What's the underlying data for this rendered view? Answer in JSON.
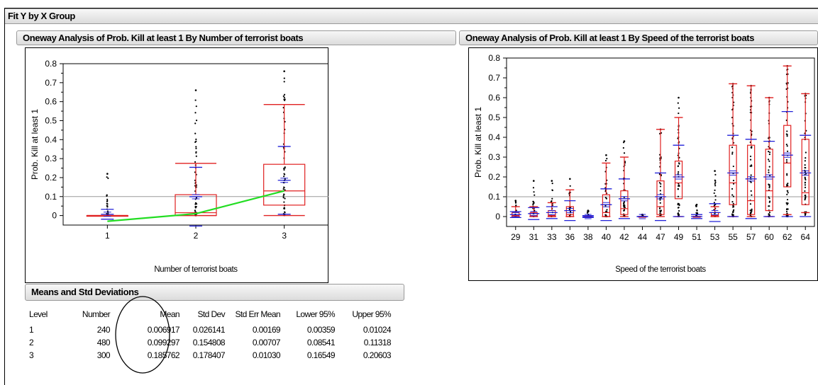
{
  "window_title": "Fit Y by X Group",
  "left_panel": {
    "title": "Oneway Analysis of Prob. Kill at least 1 By Number of terrorist boats",
    "chart_data": {
      "type": "box",
      "xlabel": "Number of terrorist boats",
      "ylabel": "Prob. Kill at least 1",
      "ylim": [
        -0.05,
        0.8
      ],
      "yticks": [
        0,
        0.1,
        0.2,
        0.3,
        0.4,
        0.5,
        0.6,
        0.7,
        0.8
      ],
      "categories": [
        "1",
        "2",
        "3"
      ],
      "reference_line": 0.1,
      "boxes": [
        {
          "group": "1",
          "min": 0,
          "q1": 0,
          "median": 0,
          "q3": 0,
          "whisker_low": 0,
          "whisker_high": 0
        },
        {
          "group": "2",
          "min": 0,
          "q1": 0,
          "median": 0.015,
          "q3": 0.11,
          "whisker_low": 0,
          "whisker_high": 0.275
        },
        {
          "group": "3",
          "min": 0,
          "q1": 0.055,
          "median": 0.13,
          "q3": 0.27,
          "whisker_low": 0,
          "whisker_high": 0.585
        }
      ],
      "means": [
        0.006917,
        0.099297,
        0.185762
      ],
      "std_dev_high": [
        0.033,
        0.254,
        0.364
      ],
      "std_dev_low": [
        -0.019,
        -0.055,
        0.007
      ],
      "points_max": [
        0.22,
        0.66,
        0.76
      ],
      "mean_line_color": "#22dd22",
      "mean_line": [
        -0.03,
        0.01,
        0.13
      ]
    }
  },
  "right_panel": {
    "title": "Oneway Analysis of Prob. Kill at least 1 By Speed of the terrorist boats",
    "chart_data": {
      "type": "box",
      "xlabel": "Speed of the terrorist boats",
      "ylabel": "Prob. Kill at least 1",
      "ylim": [
        -0.05,
        0.8
      ],
      "yticks": [
        0,
        0.1,
        0.2,
        0.3,
        0.4,
        0.5,
        0.6,
        0.7,
        0.8
      ],
      "reference_line": 0.1,
      "categories": [
        "29",
        "31",
        "33",
        "36",
        "38",
        "40",
        "42",
        "44",
        "47",
        "49",
        "51",
        "53",
        "55",
        "57",
        "60",
        "62",
        "64"
      ],
      "boxes": [
        {
          "group": "29",
          "q1": 0,
          "median": 0.005,
          "q3": 0.02,
          "whisker_low": 0,
          "whisker_high": 0.05,
          "mean": 0.01,
          "sd_high": 0.025,
          "points_max": 0.08
        },
        {
          "group": "31",
          "q1": 0,
          "median": 0.005,
          "q3": 0.02,
          "whisker_low": 0,
          "whisker_high": 0.05,
          "mean": 0.015,
          "sd_high": 0.045,
          "points_max": 0.18
        },
        {
          "group": "33",
          "q1": 0,
          "median": 0.005,
          "q3": 0.03,
          "whisker_low": 0,
          "whisker_high": 0.07,
          "mean": 0.02,
          "sd_high": 0.05,
          "points_max": 0.18
        },
        {
          "group": "36",
          "q1": 0,
          "median": 0.01,
          "q3": 0.05,
          "whisker_low": 0,
          "whisker_high": 0.135,
          "mean": 0.03,
          "sd_high": 0.08,
          "points_max": 0.19
        },
        {
          "group": "38",
          "q1": 0,
          "median": 0,
          "q3": 0,
          "whisker_low": 0,
          "whisker_high": 0,
          "mean": 0,
          "sd_high": 0.005,
          "points_max": 0.03
        },
        {
          "group": "40",
          "q1": 0,
          "median": 0.02,
          "q3": 0.11,
          "whisker_low": 0,
          "whisker_high": 0.27,
          "mean": 0.06,
          "sd_high": 0.14,
          "points_max": 0.31
        },
        {
          "group": "42",
          "q1": 0.01,
          "median": 0.04,
          "q3": 0.13,
          "whisker_low": 0,
          "whisker_high": 0.3,
          "mean": 0.09,
          "sd_high": 0.19,
          "points_max": 0.38
        },
        {
          "group": "44",
          "q1": 0,
          "median": 0,
          "q3": 0,
          "whisker_low": 0,
          "whisker_high": 0,
          "mean": 0,
          "sd_high": 0,
          "points_max": 0.01
        },
        {
          "group": "47",
          "q1": 0.01,
          "median": 0.05,
          "q3": 0.18,
          "whisker_low": 0,
          "whisker_high": 0.44,
          "mean": 0.1,
          "sd_high": 0.22,
          "points_max": 0.44
        },
        {
          "group": "49",
          "q1": 0.09,
          "median": 0.17,
          "q3": 0.28,
          "whisker_low": 0,
          "whisker_high": 0.5,
          "mean": 0.2,
          "sd_high": 0.36,
          "points_max": 0.6
        },
        {
          "group": "51",
          "q1": 0,
          "median": 0,
          "q3": 0,
          "whisker_low": 0,
          "whisker_high": 0,
          "mean": 0,
          "sd_high": 0.01,
          "points_max": 0.06
        },
        {
          "group": "53",
          "q1": 0,
          "median": 0.005,
          "q3": 0.02,
          "whisker_low": 0,
          "whisker_high": 0.05,
          "mean": 0.02,
          "sd_high": 0.065,
          "points_max": 0.23
        },
        {
          "group": "55",
          "q1": 0.06,
          "median": 0.17,
          "q3": 0.36,
          "whisker_low": 0,
          "whisker_high": 0.67,
          "mean": 0.22,
          "sd_high": 0.41,
          "points_max": 0.67
        },
        {
          "group": "57",
          "q1": 0.01,
          "median": 0.08,
          "q3": 0.36,
          "whisker_low": 0,
          "whisker_high": 0.66,
          "mean": 0.19,
          "sd_high": 0.39,
          "points_max": 0.66
        },
        {
          "group": "60",
          "q1": 0.03,
          "median": 0.13,
          "q3": 0.34,
          "whisker_low": 0,
          "whisker_high": 0.6,
          "mean": 0.2,
          "sd_high": 0.38,
          "points_max": 0.6
        },
        {
          "group": "62",
          "q1": 0.15,
          "median": 0.27,
          "q3": 0.46,
          "whisker_low": 0.01,
          "whisker_high": 0.76,
          "mean": 0.31,
          "sd_high": 0.53,
          "points_max": 0.76
        },
        {
          "group": "64",
          "q1": 0.06,
          "median": 0.12,
          "q3": 0.39,
          "whisker_low": 0.02,
          "whisker_high": 0.62,
          "mean": 0.22,
          "sd_high": 0.41,
          "points_max": 0.62
        }
      ]
    }
  },
  "means_table": {
    "title": "Means and Std Deviations",
    "columns": [
      "Level",
      "Number",
      "Mean",
      "Std Dev",
      "Std Err Mean",
      "Lower 95%",
      "Upper 95%"
    ],
    "rows": [
      [
        "1",
        "240",
        "0.006917",
        "0.026141",
        "0.00169",
        "0.00359",
        "0.01024"
      ],
      [
        "2",
        "480",
        "0.099297",
        "0.154808",
        "0.00707",
        "0.08541",
        "0.11318"
      ],
      [
        "3",
        "300",
        "0.185762",
        "0.178407",
        "0.01030",
        "0.16549",
        "0.20603"
      ]
    ]
  }
}
